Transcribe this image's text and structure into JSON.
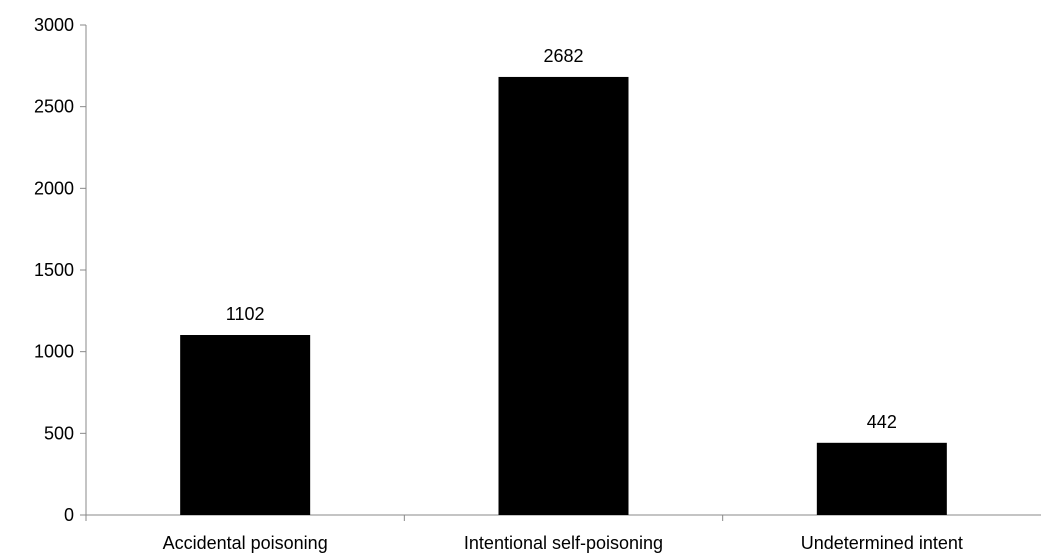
{
  "chart_data": {
    "type": "bar",
    "title": "",
    "xlabel": "",
    "ylabel": "",
    "categories": [
      "Accidental poisoning",
      "Intentional self-poisoning",
      "Undetermined intent"
    ],
    "values": [
      1102,
      2682,
      442
    ],
    "data_labels": [
      "1102",
      "2682",
      "442"
    ],
    "ylim": [
      0,
      3000
    ],
    "yticks": [
      0,
      500,
      1000,
      1500,
      2000,
      2500,
      3000
    ],
    "ytick_labels": [
      "0",
      "500",
      "1000",
      "1500",
      "2000",
      "2500",
      "3000"
    ],
    "grid": false,
    "legend": "none",
    "colors": {
      "bar": "#000000",
      "axis": "#888888",
      "text": "#000000",
      "background": "#ffffff"
    }
  }
}
